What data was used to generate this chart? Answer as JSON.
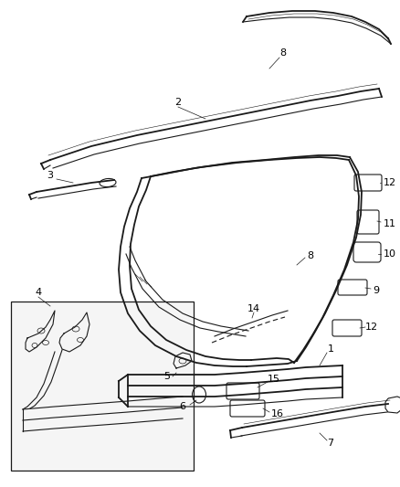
{
  "background_color": "#ffffff",
  "line_color": "#1a1a1a",
  "fig_width": 4.39,
  "fig_height": 5.33,
  "dpi": 100
}
